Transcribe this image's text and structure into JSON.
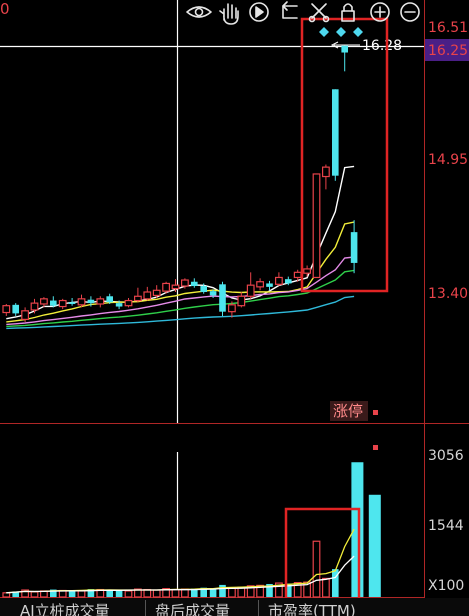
{
  "top_left_number": "0",
  "toolbar": [
    {
      "name": "eye-icon"
    },
    {
      "name": "hand-icon"
    },
    {
      "name": "play-icon"
    },
    {
      "name": "back-icon"
    },
    {
      "name": "scissors-icon"
    },
    {
      "name": "lock-icon"
    },
    {
      "name": "zoom-in-icon"
    },
    {
      "name": "zoom-out-icon"
    }
  ],
  "price_axis": {
    "labels": [
      "16.51",
      "14.95",
      "13.40"
    ],
    "current_price": "16.25",
    "high_marker": "16.28"
  },
  "volume_axis": {
    "labels": [
      "3056",
      "1544"
    ],
    "unit": "X100"
  },
  "badge": {
    "text": "涨停"
  },
  "tabs": [
    {
      "label": "AI立桩成交量"
    },
    {
      "label": "盘后成交量"
    },
    {
      "label": "市盈率(TTM)"
    }
  ],
  "colors": {
    "up": "#e8434a",
    "down": "#4ee6ee",
    "ma_white": "#ffffff",
    "ma_yellow": "#f2ee3a",
    "ma_pink": "#e58be8",
    "ma_green": "#2fcf4a",
    "ma_cyan": "#2fb9d9",
    "current_price_bg": "#4a1f86"
  },
  "chart_data": {
    "type": "candlestick",
    "y_labels": [
      "16.51",
      "14.95",
      "13.40"
    ],
    "candles": [
      {
        "o": 13.16,
        "c": 13.24,
        "h": 13.26,
        "l": 13.12
      },
      {
        "o": 13.25,
        "c": 13.15,
        "h": 13.27,
        "l": 13.12
      },
      {
        "o": 13.08,
        "c": 13.18,
        "h": 13.22,
        "l": 13.05
      },
      {
        "o": 13.19,
        "c": 13.27,
        "h": 13.32,
        "l": 13.15
      },
      {
        "o": 13.26,
        "c": 13.32,
        "h": 13.34,
        "l": 13.22
      },
      {
        "o": 13.3,
        "c": 13.24,
        "h": 13.35,
        "l": 13.22
      },
      {
        "o": 13.23,
        "c": 13.3,
        "h": 13.32,
        "l": 13.2
      },
      {
        "o": 13.28,
        "c": 13.26,
        "h": 13.33,
        "l": 13.24
      },
      {
        "o": 13.25,
        "c": 13.32,
        "h": 13.37,
        "l": 13.22
      },
      {
        "o": 13.31,
        "c": 13.27,
        "h": 13.35,
        "l": 13.23
      },
      {
        "o": 13.26,
        "c": 13.32,
        "h": 13.35,
        "l": 13.22
      },
      {
        "o": 13.35,
        "c": 13.28,
        "h": 13.38,
        "l": 13.26
      },
      {
        "o": 13.27,
        "c": 13.23,
        "h": 13.3,
        "l": 13.2
      },
      {
        "o": 13.24,
        "c": 13.3,
        "h": 13.33,
        "l": 13.22
      },
      {
        "o": 13.3,
        "c": 13.35,
        "h": 13.45,
        "l": 13.28
      },
      {
        "o": 13.32,
        "c": 13.4,
        "h": 13.46,
        "l": 13.3
      },
      {
        "o": 13.36,
        "c": 13.42,
        "h": 13.48,
        "l": 13.33
      },
      {
        "o": 13.41,
        "c": 13.5,
        "h": 13.52,
        "l": 13.38
      },
      {
        "o": 13.44,
        "c": 13.48,
        "h": 13.55,
        "l": 13.4
      },
      {
        "o": 13.47,
        "c": 13.54,
        "h": 13.56,
        "l": 13.44
      },
      {
        "o": 13.52,
        "c": 13.47,
        "h": 13.56,
        "l": 13.45
      },
      {
        "o": 13.47,
        "c": 13.4,
        "h": 13.5,
        "l": 13.38
      },
      {
        "o": 13.41,
        "c": 13.36,
        "h": 13.43,
        "l": 13.33
      },
      {
        "o": 13.49,
        "c": 13.17,
        "h": 13.52,
        "l": 13.12
      },
      {
        "o": 13.17,
        "c": 13.25,
        "h": 13.29,
        "l": 13.1
      },
      {
        "o": 13.24,
        "c": 13.35,
        "h": 13.4,
        "l": 13.22
      },
      {
        "o": 13.35,
        "c": 13.48,
        "h": 13.63,
        "l": 13.32
      },
      {
        "o": 13.46,
        "c": 13.52,
        "h": 13.56,
        "l": 13.42
      },
      {
        "o": 13.5,
        "c": 13.46,
        "h": 13.53,
        "l": 13.42
      },
      {
        "o": 13.49,
        "c": 13.57,
        "h": 13.63,
        "l": 13.47
      },
      {
        "o": 13.55,
        "c": 13.5,
        "h": 13.58,
        "l": 13.48
      },
      {
        "o": 13.57,
        "c": 13.63,
        "h": 13.66,
        "l": 13.52
      },
      {
        "o": 13.62,
        "c": 13.67,
        "h": 13.71,
        "l": 13.58
      },
      {
        "o": 13.57,
        "c": 14.78,
        "h": 14.78,
        "l": 13.57
      },
      {
        "o": 14.75,
        "c": 14.86,
        "h": 14.89,
        "l": 14.6
      },
      {
        "o": 15.77,
        "c": 14.76,
        "h": 15.77,
        "l": 14.7
      },
      {
        "o": 16.28,
        "c": 16.2,
        "h": 16.28,
        "l": 15.98
      },
      {
        "o": 14.1,
        "c": 13.74,
        "h": 14.24,
        "l": 13.62
      }
    ],
    "moving_averages": [
      {
        "color": "white",
        "values_near_end": [
          13.61,
          13.88,
          14.3,
          14.45,
          14.47
        ]
      },
      {
        "color": "yellow",
        "values_near_end": [
          13.6,
          13.86,
          14.04,
          14.05
        ]
      },
      {
        "color": "pink",
        "values_near_end": [
          13.59,
          13.68,
          13.74,
          13.76
        ]
      },
      {
        "color": "green",
        "values_near_end": [
          13.46,
          13.55,
          13.58
        ]
      },
      {
        "color": "cyan",
        "values_near_end": [
          13.4,
          13.42
        ]
      }
    ],
    "volume": {
      "y_labels": [
        "3056",
        "1544"
      ],
      "unit": "X100",
      "bars": [
        90,
        120,
        150,
        110,
        130,
        160,
        140,
        150,
        130,
        170,
        160,
        150,
        140,
        130,
        170,
        160,
        150,
        180,
        160,
        170,
        180,
        200,
        190,
        260,
        200,
        210,
        240,
        250,
        280,
        300,
        290,
        310,
        320,
        1200,
        400,
        600,
        2900,
        2200
      ],
      "up": [
        true,
        false,
        true,
        true,
        true,
        false,
        true,
        false,
        true,
        false,
        true,
        false,
        false,
        true,
        true,
        true,
        true,
        true,
        true,
        true,
        false,
        false,
        false,
        false,
        true,
        true,
        true,
        true,
        false,
        true,
        false,
        true,
        true,
        true,
        true,
        false,
        false,
        false
      ]
    }
  }
}
